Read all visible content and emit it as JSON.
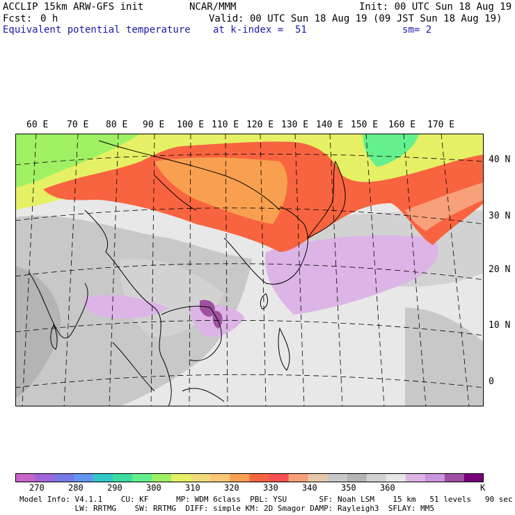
{
  "header": {
    "model_line": "ACCLIP 15km ARW-GFS init",
    "center": "NCAR/MMM",
    "init": "Init: 00 UTC Sun 18 Aug 19",
    "fcst_label": "Fcst:",
    "fcst_value": "0 h",
    "valid": "Valid: 00 UTC Sun 18 Aug 19 (09 JST Sun 18 Aug 19)",
    "field": "Equivalent potential temperature",
    "level": "at k-index =  51",
    "smooth": "sm= 2"
  },
  "map": {
    "lon_labels": [
      "60 E",
      "70 E",
      "80 E",
      "90 E",
      "100 E",
      "110 E",
      "120 E",
      "130 E",
      "140 E",
      "150 E",
      "160 E",
      "170 E"
    ],
    "lat_labels": [
      "40 N",
      "30 N",
      "20 N",
      "10 N",
      "0"
    ]
  },
  "colorbar": {
    "colors": [
      "#c864c8",
      "#a064dc",
      "#7878e6",
      "#6496f0",
      "#32c8c8",
      "#3cdca0",
      "#64f08c",
      "#a0f064",
      "#e6f064",
      "#f0dc78",
      "#f8c878",
      "#f8a050",
      "#f86440",
      "#f85050",
      "#f8a07a",
      "#e6c8aa",
      "#c8c8c8",
      "#b4b4b4",
      "#d2d2d2",
      "#e6e6e6",
      "#dcb4e6",
      "#c896dc",
      "#a050a0",
      "#780078"
    ],
    "ticks": [
      "270",
      "280",
      "290",
      "300",
      "310",
      "320",
      "330",
      "340",
      "350",
      "360"
    ],
    "unit": "K"
  },
  "footer": {
    "line1": "Model Info: V4.1.1    CU: KF      MP: WDM 6class  PBL: YSU       SF: Noah LSM    15 km   51 levels   90 sec",
    "line2": "            LW: RRTMG    SW: RRTMG  DIFF: simple KM: 2D Smagor DAMP: Rayleigh3  SFLAY: MM5"
  }
}
